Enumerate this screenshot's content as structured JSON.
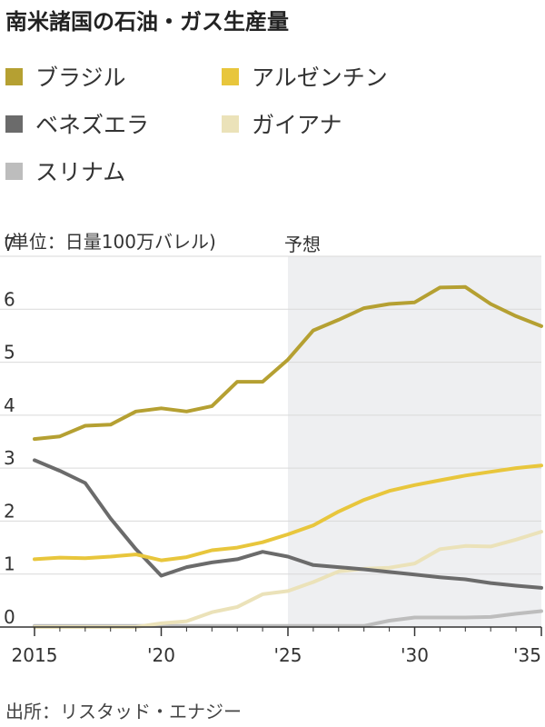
{
  "chart_data": {
    "type": "line",
    "title": "南米諸国の石油・ガス生産量",
    "unit_label": "(単位：日量100万バレル)",
    "forecast_label": "予想",
    "forecast_start": 2025,
    "ylim": [
      0,
      7
    ],
    "xlim": [
      2015,
      2035
    ],
    "yticks": [
      "0",
      "1",
      "2",
      "3",
      "4",
      "5",
      "6",
      "7"
    ],
    "xticks": [
      {
        "value": 2015,
        "label": "2015"
      },
      {
        "value": 2020,
        "label": "'20"
      },
      {
        "value": 2025,
        "label": "'25"
      },
      {
        "value": 2030,
        "label": "'30"
      },
      {
        "value": 2035,
        "label": "'35"
      }
    ],
    "x": [
      2015,
      2016,
      2017,
      2018,
      2019,
      2020,
      2021,
      2022,
      2023,
      2024,
      2025,
      2026,
      2027,
      2028,
      2029,
      2030,
      2031,
      2032,
      2033,
      2034,
      2035
    ],
    "series": [
      {
        "name": "ブラジル",
        "color": "#b5a032",
        "values": [
          3.55,
          3.6,
          3.8,
          3.82,
          4.07,
          4.13,
          4.07,
          4.17,
          4.63,
          4.63,
          5.05,
          5.6,
          5.8,
          6.02,
          6.1,
          6.13,
          6.41,
          6.42,
          6.1,
          5.87,
          5.68
        ]
      },
      {
        "name": "アルゼンチン",
        "color": "#e8c63c",
        "values": [
          1.28,
          1.31,
          1.3,
          1.33,
          1.37,
          1.26,
          1.32,
          1.45,
          1.5,
          1.6,
          1.75,
          1.92,
          2.18,
          2.4,
          2.57,
          2.68,
          2.77,
          2.86,
          2.93,
          3.0,
          3.05
        ]
      },
      {
        "name": "ベネズエラ",
        "color": "#6b6b6b",
        "values": [
          3.15,
          2.95,
          2.72,
          2.05,
          1.47,
          0.97,
          1.13,
          1.22,
          1.28,
          1.42,
          1.33,
          1.17,
          1.13,
          1.09,
          1.04,
          0.99,
          0.94,
          0.9,
          0.83,
          0.78,
          0.74
        ]
      },
      {
        "name": "ガイアナ",
        "color": "#ebe2b9",
        "values": [
          0,
          0,
          0,
          0,
          0,
          0.07,
          0.11,
          0.28,
          0.38,
          0.62,
          0.68,
          0.85,
          1.05,
          1.1,
          1.12,
          1.2,
          1.47,
          1.53,
          1.52,
          1.65,
          1.8
        ]
      },
      {
        "name": "スリナム",
        "color": "#bdbdbd",
        "values": [
          0.02,
          0.02,
          0.02,
          0.02,
          0.02,
          0.02,
          0.02,
          0.02,
          0.02,
          0.02,
          0.02,
          0.02,
          0.02,
          0.02,
          0.12,
          0.18,
          0.18,
          0.18,
          0.19,
          0.25,
          0.3
        ]
      }
    ],
    "source": "出所：リスタッド・エナジー",
    "grid": true,
    "legend_position": "top"
  }
}
